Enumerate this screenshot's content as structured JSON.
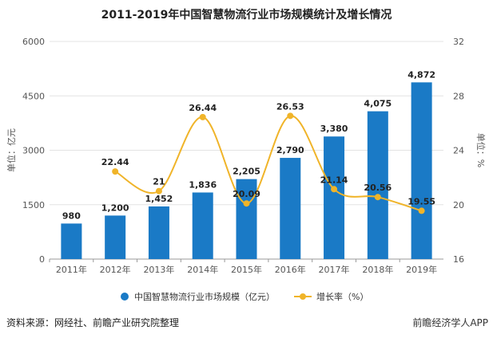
{
  "chart_data": {
    "type": "bar+line",
    "title": "2011-2019年中国智慧物流行业市场规模统计及增长情况",
    "categories": [
      "2011年",
      "2012年",
      "2013年",
      "2014年",
      "2015年",
      "2016年",
      "2017年",
      "2018年",
      "2019年"
    ],
    "series": [
      {
        "name": "中国智慧物流行业市场规模（亿元）",
        "type": "bar",
        "axis": "left",
        "color": "#1a7ac6",
        "values": [
          980,
          1200,
          1452,
          1836,
          2205,
          2790,
          3380,
          4075,
          4872
        ],
        "labels": [
          "980",
          "1,200",
          "1,452",
          "1,836",
          "2,205",
          "2,790",
          "3,380",
          "4,075",
          "4,872"
        ]
      },
      {
        "name": "增长率（%）",
        "type": "line",
        "axis": "right",
        "color": "#f0b429",
        "values": [
          null,
          22.44,
          21,
          26.44,
          20.09,
          26.53,
          21.14,
          20.56,
          19.55
        ],
        "labels": [
          "",
          "22.44",
          "21",
          "26.44",
          "20.09",
          "26.53",
          "21.14",
          "20.56",
          "19.55"
        ]
      }
    ],
    "ylabel": "单位：亿元",
    "y2label": "单位：%",
    "ylim": [
      0,
      6000
    ],
    "yticks": [
      "0",
      "1500",
      "3000",
      "4500",
      "6000"
    ],
    "y2lim": [
      16,
      32
    ],
    "y2ticks": [
      "16",
      "20",
      "24",
      "28",
      "32"
    ],
    "grid": true,
    "legend": "bottom"
  },
  "footer": {
    "source": "资料来源：网经社、前瞻产业研究院整理",
    "brand": "前瞻经济学人APP"
  }
}
